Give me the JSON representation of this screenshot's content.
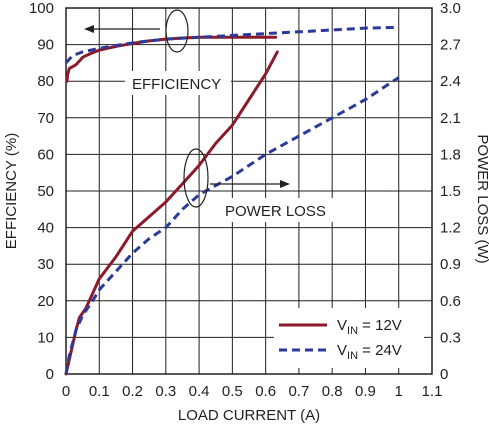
{
  "chart_data": {
    "type": "line",
    "xlabel": "LOAD CURRENT (A)",
    "ylabel": "EFFICIENCY (%)",
    "y2label": "POWER LOSS (W)",
    "x_ticks": [
      "0",
      "0.1",
      "0.2",
      "0.3",
      "0.4",
      "0.5",
      "0.6",
      "0.7",
      "0.8",
      "0.9",
      "1",
      "1.1"
    ],
    "y_ticks": [
      "0",
      "10",
      "20",
      "30",
      "40",
      "50",
      "60",
      "70",
      "80",
      "90",
      "100"
    ],
    "y2_ticks": [
      "0",
      "0.3",
      "0.6",
      "0.9",
      "1.2",
      "1.5",
      "1.8",
      "2.1",
      "2.4",
      "2.7",
      "3.0"
    ],
    "xlim": [
      0,
      1.1
    ],
    "ylim": [
      0,
      100
    ],
    "y2lim": [
      0,
      3.0
    ],
    "grid": true,
    "legend": "bottom-right",
    "colors": {
      "vin12": "#8b1a2b",
      "vin24": "#2b3a9a",
      "grid": "#231f20",
      "text": "#231f20"
    },
    "annotations": {
      "efficiency": "EFFICIENCY",
      "power_loss": "POWER LOSS"
    },
    "series": [
      {
        "name": "VIN = 12V",
        "legend_main": "V",
        "legend_sub": "IN",
        "legend_rest": " = 12V",
        "style": "solid",
        "color": "#8b1a2b",
        "axis": "left",
        "measure": "efficiency",
        "x": [
          0.003,
          0.005,
          0.01,
          0.02,
          0.03,
          0.04,
          0.05,
          0.06,
          0.08,
          0.1,
          0.15,
          0.2,
          0.25,
          0.3,
          0.35,
          0.4,
          0.5,
          0.6,
          0.63
        ],
        "values": [
          80.0,
          82.0,
          83.5,
          84.0,
          84.5,
          85.5,
          86.5,
          87.0,
          87.8,
          88.5,
          89.5,
          90.3,
          91.0,
          91.5,
          91.8,
          92.0,
          92.0,
          92.0,
          92.0
        ]
      },
      {
        "name": "VIN = 12V",
        "style": "solid",
        "color": "#8b1a2b",
        "axis": "right",
        "measure": "power_loss",
        "x": [
          0.0,
          0.01,
          0.02,
          0.03,
          0.04,
          0.05,
          0.06,
          0.08,
          0.1,
          0.15,
          0.2,
          0.25,
          0.3,
          0.35,
          0.4,
          0.45,
          0.5,
          0.55,
          0.6,
          0.635
        ],
        "values": [
          0.0,
          0.12,
          0.24,
          0.36,
          0.46,
          0.5,
          0.54,
          0.66,
          0.78,
          0.96,
          1.17,
          1.29,
          1.41,
          1.56,
          1.71,
          1.89,
          2.04,
          2.25,
          2.46,
          2.64
        ]
      },
      {
        "name": "VIN = 24V",
        "legend_main": "V",
        "legend_sub": "IN",
        "legend_rest": " = 24V",
        "style": "dashed",
        "color": "#2b3a9a",
        "axis": "left",
        "measure": "efficiency",
        "x": [
          0.0,
          0.01,
          0.02,
          0.05,
          0.1,
          0.2,
          0.3,
          0.4,
          0.5,
          0.6,
          0.7,
          0.8,
          0.9,
          1.0
        ],
        "values": [
          85.0,
          86.0,
          87.0,
          88.0,
          89.0,
          90.5,
          91.5,
          92.0,
          92.5,
          93.0,
          93.5,
          94.0,
          94.5,
          94.7
        ]
      },
      {
        "name": "VIN = 24V",
        "style": "dashed",
        "color": "#2b3a9a",
        "axis": "right",
        "measure": "power_loss",
        "x": [
          0.0,
          0.01,
          0.03,
          0.05,
          0.08,
          0.1,
          0.15,
          0.2,
          0.25,
          0.3,
          0.35,
          0.4,
          0.5,
          0.6,
          0.7,
          0.8,
          0.9,
          1.0
        ],
        "values": [
          0.0,
          0.15,
          0.36,
          0.48,
          0.6,
          0.69,
          0.84,
          0.99,
          1.11,
          1.2,
          1.35,
          1.47,
          1.62,
          1.8,
          1.95,
          2.1,
          2.25,
          2.43
        ]
      }
    ]
  }
}
